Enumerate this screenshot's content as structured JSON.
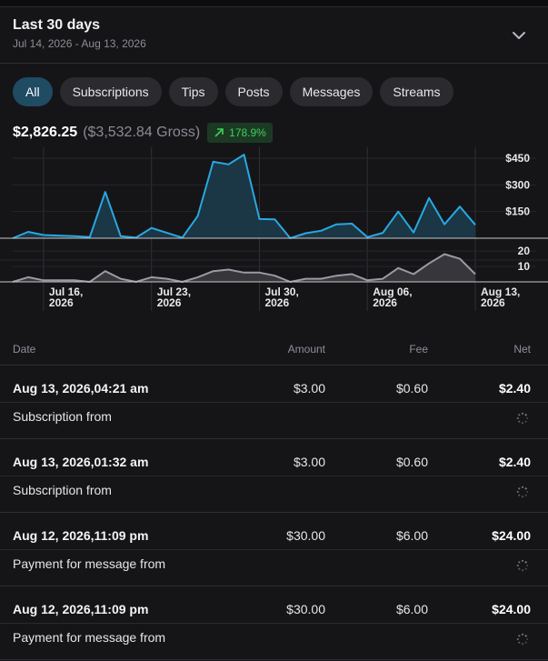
{
  "period": {
    "title": "Last 30 days",
    "range": "Jul 14, 2026 - Aug 13, 2026",
    "expand_icon": "chevron-down-icon"
  },
  "tabs": [
    {
      "label": "All",
      "active": true
    },
    {
      "label": "Subscriptions",
      "active": false
    },
    {
      "label": "Tips",
      "active": false
    },
    {
      "label": "Posts",
      "active": false
    },
    {
      "label": "Messages",
      "active": false
    },
    {
      "label": "Streams",
      "active": false
    }
  ],
  "summary": {
    "net": "$2,826.25",
    "gross": "($3,532.84 Gross)",
    "change": "178.9%",
    "change_icon": "trend-up-arrow-icon"
  },
  "colors": {
    "accent": "#1f4b63",
    "earnings_line": "#29a8e0",
    "count_line": "#9a9aa2",
    "positive": "#3ecf5d"
  },
  "chart_data": {
    "type": "area",
    "x": [
      "Jul 14",
      "Jul 15",
      "Jul 16",
      "Jul 17",
      "Jul 18",
      "Jul 19",
      "Jul 20",
      "Jul 21",
      "Jul 22",
      "Jul 23",
      "Jul 24",
      "Jul 25",
      "Jul 26",
      "Jul 27",
      "Jul 28",
      "Jul 29",
      "Jul 30",
      "Jul 31",
      "Aug 01",
      "Aug 02",
      "Aug 03",
      "Aug 04",
      "Aug 05",
      "Aug 06",
      "Aug 07",
      "Aug 08",
      "Aug 09",
      "Aug 10",
      "Aug 11",
      "Aug 12",
      "Aug 13"
    ],
    "x_ticks": [
      {
        "date": "Jul 16",
        "label": "Jul 16,",
        "label2": "2026"
      },
      {
        "date": "Jul 23",
        "label": "Jul 23,",
        "label2": "2026"
      },
      {
        "date": "Jul 30",
        "label": "Jul 30,",
        "label2": "2026"
      },
      {
        "date": "Aug 06",
        "label": "Aug 06,",
        "label2": "2026"
      },
      {
        "date": "Aug 13",
        "label": "Aug 13,",
        "label2": "2026"
      }
    ],
    "series": [
      {
        "values": [
          0,
          36,
          18,
          15,
          12,
          6,
          260,
          12,
          3,
          58,
          30,
          3,
          125,
          430,
          415,
          470,
          108,
          106,
          0,
          28,
          42,
          78,
          82,
          6,
          30,
          150,
          32,
          226,
          78,
          178,
          75
        ],
        "ylim": [
          0,
          450
        ],
        "yticks": [
          {
            "value": 150,
            "label": "$150"
          },
          {
            "value": 300,
            "label": "$300"
          },
          {
            "value": 450,
            "label": "$450"
          }
        ]
      },
      {
        "values": [
          0,
          3,
          1,
          1,
          1,
          0,
          7,
          2,
          0,
          3,
          2,
          0,
          3,
          7,
          8,
          6,
          6,
          4,
          0,
          2,
          2,
          4,
          5,
          1,
          2,
          9,
          5,
          12,
          18,
          15,
          5
        ],
        "ylim": [
          0,
          26
        ],
        "yticks": [
          {
            "value": 10,
            "label": "10"
          },
          {
            "value": 20,
            "label": "20"
          }
        ]
      }
    ],
    "grid": true
  },
  "table": {
    "headers": {
      "date": "Date",
      "amount": "Amount",
      "fee": "Fee",
      "net": "Net"
    },
    "rows": [
      {
        "date": "Aug 13, 2026,04:21 am",
        "amount": "$3.00",
        "fee": "$0.60",
        "net": "$2.40",
        "description": "Subscription from"
      },
      {
        "date": "Aug 13, 2026,01:32 am",
        "amount": "$3.00",
        "fee": "$0.60",
        "net": "$2.40",
        "description": "Subscription from"
      },
      {
        "date": "Aug 12, 2026,11:09 pm",
        "amount": "$30.00",
        "fee": "$6.00",
        "net": "$24.00",
        "description": "Payment for message from"
      },
      {
        "date": "Aug 12, 2026,11:09 pm",
        "amount": "$30.00",
        "fee": "$6.00",
        "net": "$24.00",
        "description": "Payment for message from"
      }
    ],
    "status_icon": "loading-spinner-icon"
  }
}
